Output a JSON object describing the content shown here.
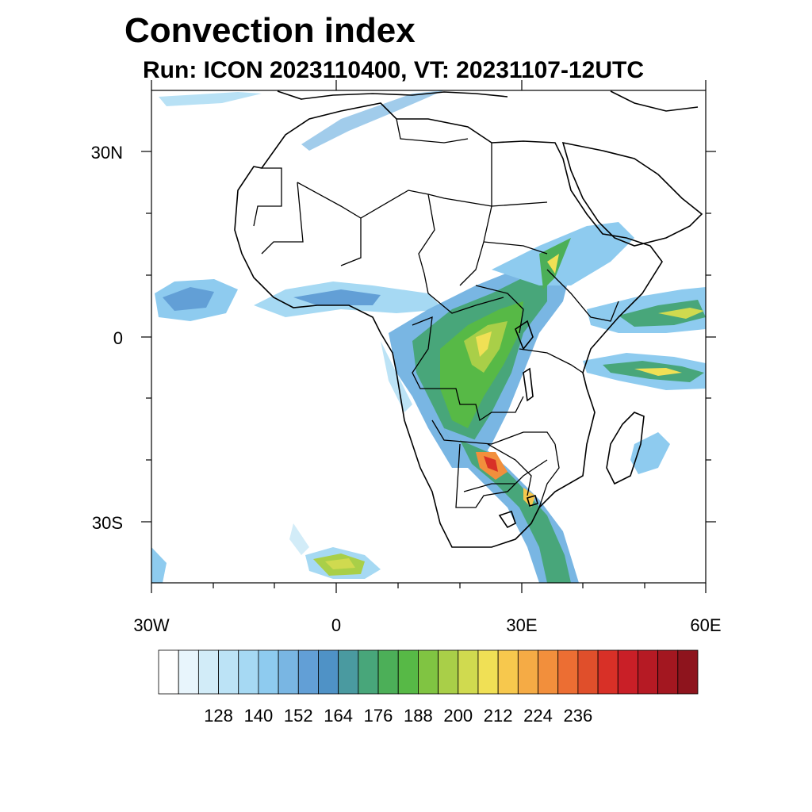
{
  "title": "Convection index",
  "subtitle": "Run: ICON 2023110400,  VT: 20231107-12UTC",
  "axes": {
    "lat_labels": [
      "30N",
      "0",
      "30S"
    ],
    "lon_labels": [
      "30W",
      "0",
      "30E",
      "60E"
    ]
  },
  "colorbar": {
    "labels": [
      "128",
      "140",
      "152",
      "164",
      "176",
      "188",
      "200",
      "212",
      "224",
      "236"
    ],
    "colors": [
      "#ffffff",
      "#e8f5fc",
      "#d2ecf8",
      "#bce3f6",
      "#a6d9f3",
      "#8ecbef",
      "#79b6e3",
      "#629fd6",
      "#4f92c6",
      "#4a9aa0",
      "#48a67a",
      "#4caf58",
      "#57b946",
      "#80c442",
      "#a9cf48",
      "#d0da4f",
      "#f0e055",
      "#f7c84d",
      "#f5ab45",
      "#f28f3c",
      "#ec6e33",
      "#e04f2b",
      "#d83027",
      "#c91f27",
      "#b61a24",
      "#a31720",
      "#8e141d"
    ]
  },
  "map": {
    "region": "Africa",
    "lon_range": [
      -30,
      60
    ],
    "lat_range": [
      -40,
      40
    ]
  }
}
